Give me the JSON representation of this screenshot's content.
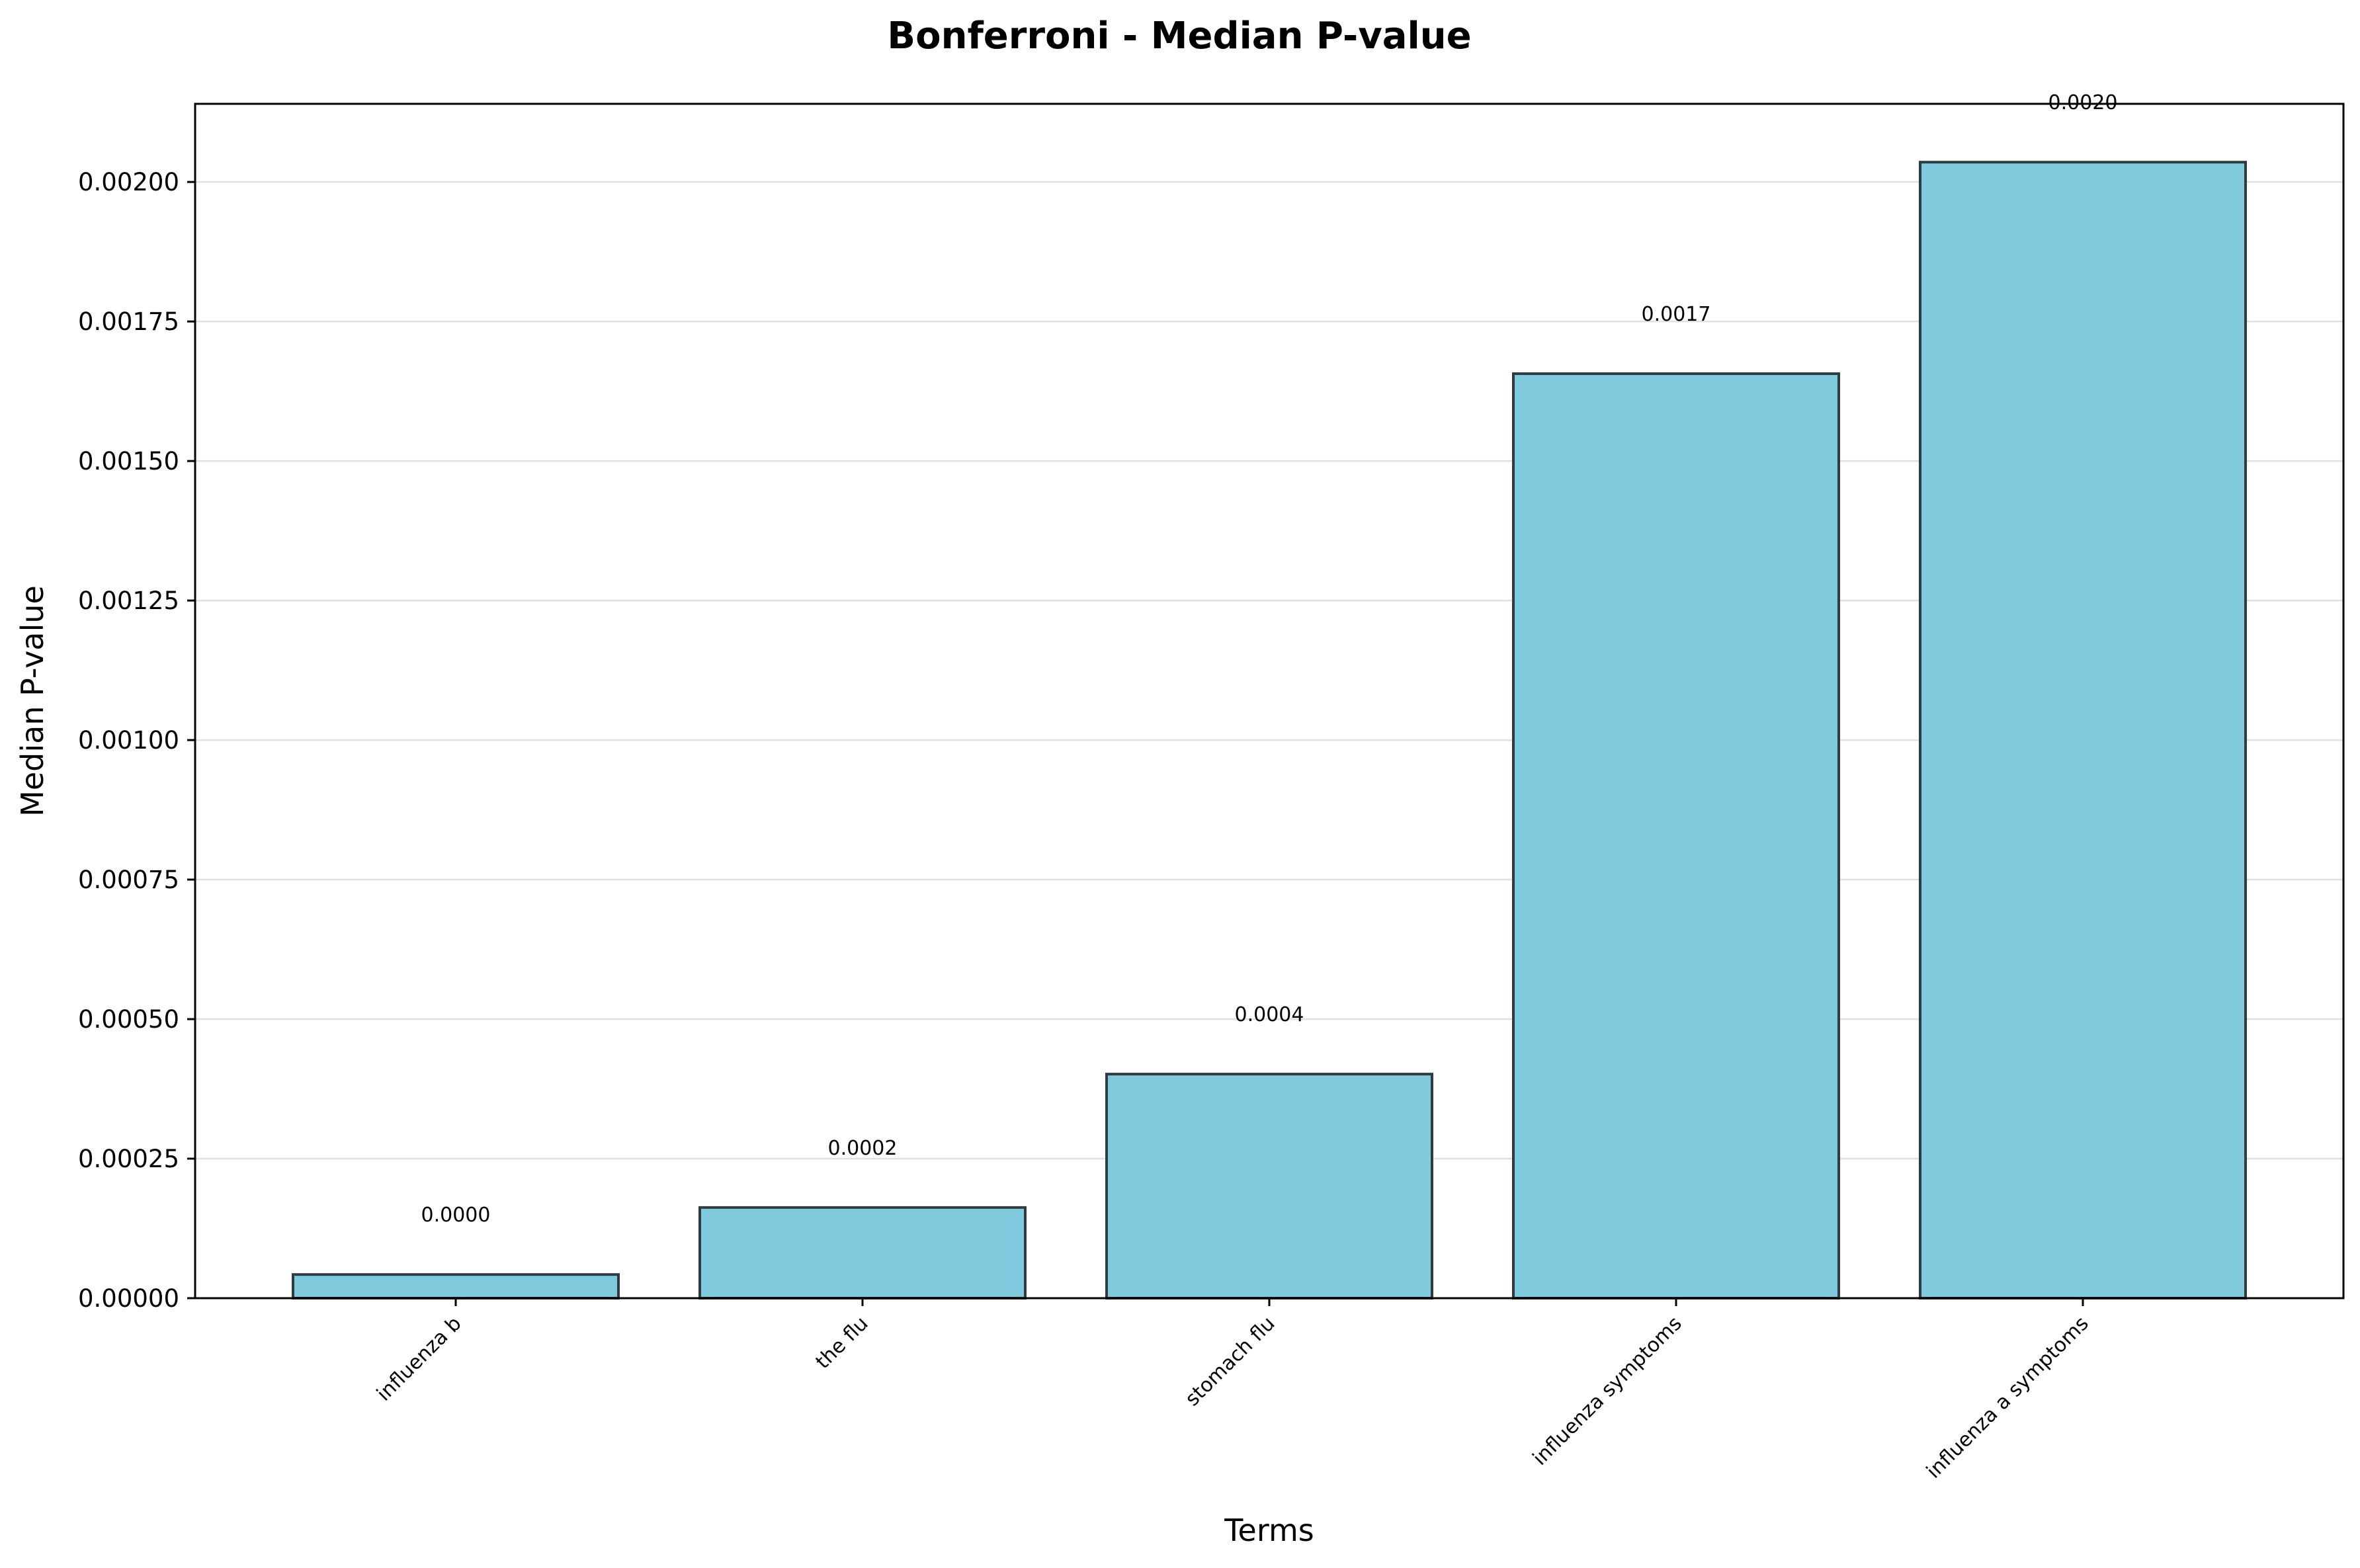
{
  "chart_data": {
    "type": "bar",
    "title": "Bonferroni - Median P-value",
    "xlabel": "Terms",
    "ylabel": "Median P-value",
    "categories": [
      "influenza b",
      "the flu",
      "stomach flu",
      "influenza symptoms",
      "influenza a symptoms"
    ],
    "values": [
      4.24e-05,
      0.0001625,
      0.0004015,
      0.0016565,
      0.0020355
    ],
    "data_labels": [
      "0.0000",
      "0.0002",
      "0.0004",
      "0.0017",
      "0.0020"
    ],
    "ylim": [
      0,
      0.00214
    ],
    "yticks": [
      0,
      0.00025,
      0.0005,
      0.00075,
      0.001,
      0.00125,
      0.0015,
      0.00175,
      0.002
    ],
    "ytick_labels": [
      "0.00000",
      "0.00025",
      "0.00050",
      "0.00075",
      "0.00100",
      "0.00125",
      "0.00150",
      "0.00175",
      "0.00200"
    ],
    "grid": "y-axis only",
    "legend": "none",
    "colors": {
      "bar_fill": "#7ecadc",
      "bar_edge": "#2f3b3f",
      "grid": "#e0e0e0"
    }
  }
}
